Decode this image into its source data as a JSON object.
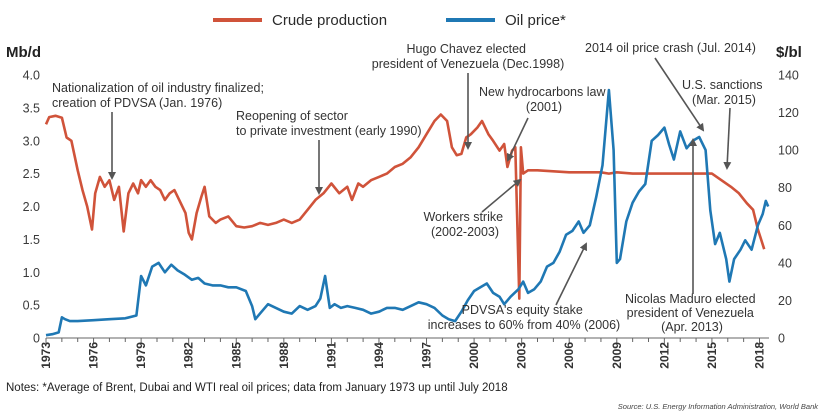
{
  "chart_data": {
    "type": "line",
    "legend": {
      "crude": "Crude production",
      "oil": "Oil price*"
    },
    "colors": {
      "crude": "#d0533a",
      "oil": "#1f78b4",
      "annotation": "#555555"
    },
    "y_left": {
      "label": "Mb/d",
      "ylim": [
        0,
        4.0
      ],
      "ticks": [
        "0",
        "0.5",
        "1.0",
        "1.5",
        "2.0",
        "2.5",
        "3.0",
        "3.5",
        "4.0"
      ]
    },
    "y_right": {
      "label": "$/bl",
      "ylim": [
        0,
        140
      ],
      "ticks": [
        "0",
        "20",
        "40",
        "60",
        "80",
        "100",
        "120",
        "140"
      ]
    },
    "x": {
      "xlim": [
        1973,
        2018.6
      ],
      "ticks": [
        "1973",
        "1976",
        "1979",
        "1982",
        "1985",
        "1988",
        "1991",
        "1994",
        "1997",
        "2000",
        "2003",
        "2006",
        "2009",
        "2012",
        "2015",
        "2018"
      ]
    },
    "series": [
      {
        "name": "Crude production",
        "axis": "left",
        "points": [
          [
            1973,
            3.25
          ],
          [
            1973.2,
            3.36
          ],
          [
            1973.6,
            3.38
          ],
          [
            1974,
            3.35
          ],
          [
            1974.3,
            3.05
          ],
          [
            1974.6,
            3.0
          ],
          [
            1975,
            2.55
          ],
          [
            1975.3,
            2.25
          ],
          [
            1975.6,
            2.0
          ],
          [
            1975.9,
            1.65
          ],
          [
            1976.1,
            2.2
          ],
          [
            1976.4,
            2.45
          ],
          [
            1976.7,
            2.3
          ],
          [
            1977,
            2.4
          ],
          [
            1977.3,
            2.1
          ],
          [
            1977.6,
            2.3
          ],
          [
            1977.9,
            1.62
          ],
          [
            1978.2,
            2.2
          ],
          [
            1978.5,
            2.35
          ],
          [
            1978.8,
            2.2
          ],
          [
            1979,
            2.4
          ],
          [
            1979.3,
            2.3
          ],
          [
            1979.6,
            2.4
          ],
          [
            1979.9,
            2.3
          ],
          [
            1980.2,
            2.25
          ],
          [
            1980.5,
            2.1
          ],
          [
            1980.8,
            2.2
          ],
          [
            1981.1,
            2.25
          ],
          [
            1981.4,
            2.1
          ],
          [
            1981.8,
            1.9
          ],
          [
            1982,
            1.6
          ],
          [
            1982.2,
            1.5
          ],
          [
            1982.5,
            1.9
          ],
          [
            1982.8,
            2.15
          ],
          [
            1983,
            2.3
          ],
          [
            1983.3,
            1.85
          ],
          [
            1983.7,
            1.75
          ],
          [
            1984,
            1.8
          ],
          [
            1984.5,
            1.85
          ],
          [
            1985,
            1.7
          ],
          [
            1985.5,
            1.68
          ],
          [
            1986,
            1.7
          ],
          [
            1986.5,
            1.75
          ],
          [
            1987,
            1.72
          ],
          [
            1987.5,
            1.75
          ],
          [
            1988,
            1.8
          ],
          [
            1988.5,
            1.75
          ],
          [
            1989,
            1.8
          ],
          [
            1989.5,
            1.95
          ],
          [
            1990,
            2.1
          ],
          [
            1990.5,
            2.2
          ],
          [
            1991,
            2.35
          ],
          [
            1991.5,
            2.2
          ],
          [
            1992,
            2.3
          ],
          [
            1992.3,
            2.1
          ],
          [
            1992.7,
            2.35
          ],
          [
            1993,
            2.3
          ],
          [
            1993.5,
            2.4
          ],
          [
            1994,
            2.45
          ],
          [
            1994.5,
            2.5
          ],
          [
            1995,
            2.6
          ],
          [
            1995.5,
            2.65
          ],
          [
            1996,
            2.75
          ],
          [
            1996.5,
            2.9
          ],
          [
            1997,
            3.1
          ],
          [
            1997.5,
            3.3
          ],
          [
            1997.9,
            3.4
          ],
          [
            1998.3,
            3.3
          ],
          [
            1998.6,
            2.9
          ],
          [
            1998.9,
            2.78
          ],
          [
            1999.2,
            2.8
          ],
          [
            1999.5,
            3.05
          ],
          [
            1999.8,
            3.1
          ],
          [
            2000.2,
            3.2
          ],
          [
            2000.5,
            3.3
          ],
          [
            2000.9,
            3.1
          ],
          [
            2001.2,
            3.0
          ],
          [
            2001.6,
            2.85
          ],
          [
            2001.9,
            2.95
          ],
          [
            2002.1,
            2.6
          ],
          [
            2002.4,
            2.85
          ],
          [
            2002.6,
            2.9
          ],
          [
            2002.85,
            0.6
          ],
          [
            2002.95,
            2.9
          ],
          [
            2003.1,
            2.5
          ],
          [
            2003.4,
            2.55
          ],
          [
            2004,
            2.55
          ],
          [
            2006,
            2.52
          ],
          [
            2008,
            2.52
          ],
          [
            2008.5,
            2.5
          ],
          [
            2009,
            2.52
          ],
          [
            2010,
            2.5
          ],
          [
            2012,
            2.5
          ],
          [
            2014,
            2.5
          ],
          [
            2015,
            2.5
          ],
          [
            2015.6,
            2.4
          ],
          [
            2016.2,
            2.3
          ],
          [
            2016.7,
            2.2
          ],
          [
            2017.2,
            2.05
          ],
          [
            2017.6,
            1.95
          ],
          [
            2017.9,
            1.65
          ],
          [
            2018.1,
            1.5
          ],
          [
            2018.3,
            1.35
          ]
        ]
      },
      {
        "name": "Oil price*",
        "axis": "right",
        "points": [
          [
            1973,
            1.5
          ],
          [
            1973.4,
            2
          ],
          [
            1973.8,
            3
          ],
          [
            1974,
            11
          ],
          [
            1974.2,
            10
          ],
          [
            1974.5,
            9
          ],
          [
            1975,
            9
          ],
          [
            1976,
            9.5
          ],
          [
            1977,
            10
          ],
          [
            1978,
            10.5
          ],
          [
            1978.7,
            12
          ],
          [
            1979,
            33
          ],
          [
            1979.3,
            28
          ],
          [
            1979.7,
            38
          ],
          [
            1980.1,
            40
          ],
          [
            1980.5,
            35
          ],
          [
            1980.9,
            39
          ],
          [
            1981.3,
            36
          ],
          [
            1981.7,
            34
          ],
          [
            1982.2,
            31
          ],
          [
            1982.6,
            32
          ],
          [
            1983,
            29
          ],
          [
            1983.5,
            28
          ],
          [
            1984,
            28
          ],
          [
            1984.5,
            27
          ],
          [
            1985,
            27
          ],
          [
            1985.6,
            25
          ],
          [
            1986,
            17
          ],
          [
            1986.2,
            10
          ],
          [
            1986.5,
            13
          ],
          [
            1987,
            18
          ],
          [
            1987.5,
            16
          ],
          [
            1988,
            14
          ],
          [
            1988.5,
            13
          ],
          [
            1989,
            17
          ],
          [
            1989.5,
            15
          ],
          [
            1990,
            17
          ],
          [
            1990.3,
            21
          ],
          [
            1990.6,
            33
          ],
          [
            1990.9,
            16
          ],
          [
            1991.2,
            18
          ],
          [
            1991.6,
            16
          ],
          [
            1992,
            17
          ],
          [
            1992.5,
            16
          ],
          [
            1993,
            15
          ],
          [
            1993.5,
            13
          ],
          [
            1994,
            14
          ],
          [
            1994.5,
            16
          ],
          [
            1995,
            16
          ],
          [
            1995.5,
            15
          ],
          [
            1996,
            17
          ],
          [
            1996.5,
            19
          ],
          [
            1997,
            18
          ],
          [
            1997.5,
            16
          ],
          [
            1998,
            12
          ],
          [
            1998.4,
            10
          ],
          [
            1998.8,
            9
          ],
          [
            1999.2,
            14
          ],
          [
            1999.6,
            20
          ],
          [
            2000,
            25
          ],
          [
            2000.4,
            27
          ],
          [
            2000.8,
            29
          ],
          [
            2001.2,
            24
          ],
          [
            2001.6,
            22
          ],
          [
            2001.9,
            18
          ],
          [
            2002.3,
            22
          ],
          [
            2002.8,
            26
          ],
          [
            2003.1,
            30
          ],
          [
            2003.4,
            24
          ],
          [
            2003.8,
            26
          ],
          [
            2004.2,
            30
          ],
          [
            2004.6,
            38
          ],
          [
            2005,
            40
          ],
          [
            2005.4,
            46
          ],
          [
            2005.8,
            55
          ],
          [
            2006.2,
            57
          ],
          [
            2006.6,
            62
          ],
          [
            2006.9,
            56
          ],
          [
            2007.3,
            60
          ],
          [
            2007.7,
            75
          ],
          [
            2008.1,
            92
          ],
          [
            2008.5,
            132
          ],
          [
            2008.8,
            100
          ],
          [
            2009,
            40
          ],
          [
            2009.2,
            42
          ],
          [
            2009.6,
            62
          ],
          [
            2010,
            72
          ],
          [
            2010.4,
            78
          ],
          [
            2010.8,
            82
          ],
          [
            2011.2,
            105
          ],
          [
            2011.6,
            108
          ],
          [
            2012,
            112
          ],
          [
            2012.3,
            103
          ],
          [
            2012.6,
            95
          ],
          [
            2013,
            110
          ],
          [
            2013.4,
            101
          ],
          [
            2013.8,
            105
          ],
          [
            2014.2,
            107
          ],
          [
            2014.6,
            100
          ],
          [
            2014.9,
            68
          ],
          [
            2015.2,
            50
          ],
          [
            2015.5,
            56
          ],
          [
            2015.9,
            42
          ],
          [
            2016.1,
            30
          ],
          [
            2016.4,
            42
          ],
          [
            2016.8,
            47
          ],
          [
            2017.1,
            52
          ],
          [
            2017.5,
            47
          ],
          [
            2017.9,
            60
          ],
          [
            2018.2,
            66
          ],
          [
            2018.4,
            73
          ],
          [
            2018.55,
            70
          ]
        ]
      }
    ],
    "annotations": [
      {
        "lines": [
          "Nationalization of oil industry finalized;",
          "creation of PDVSA (Jan. 1976)"
        ]
      },
      {
        "lines": [
          "Reopening of sector",
          "to private investment (early 1990)"
        ]
      },
      {
        "lines": [
          "Hugo Chavez elected",
          "president of Venezuela (Dec.1998)"
        ]
      },
      {
        "lines": [
          "New hydrocarbons law",
          "(2001)"
        ]
      },
      {
        "lines": [
          "2014 oil price crash (Jul. 2014)"
        ]
      },
      {
        "lines": [
          "U.S. sanctions",
          "(Mar. 2015)"
        ]
      },
      {
        "lines": [
          "Workers strike",
          "(2002-2003)"
        ]
      },
      {
        "lines": [
          "PDVSA's equity stake",
          "increases to 60% from 40% (2006)"
        ]
      },
      {
        "lines": [
          "Nicolas Maduro elected",
          "president of Venezuela",
          "(Apr. 2013)"
        ]
      }
    ],
    "notes": "Notes: *Average of Brent, Dubai and WTI real oil prices; data from January 1973 up until July 2018",
    "source": "Source: U.S. Energy Information Administration, World Bank"
  }
}
